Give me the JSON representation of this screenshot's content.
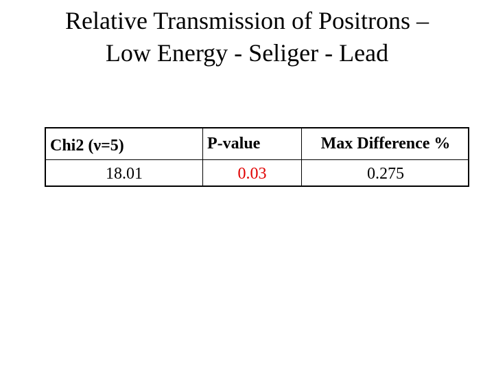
{
  "header": {
    "title_lines": [
      "Relative Transmission of Positrons –",
      "Low Energy - Seliger - Lead"
    ]
  },
  "table": {
    "headers": [
      "Chi2 (ν=5)",
      "P-value",
      "Max Difference %"
    ],
    "rows": [
      [
        "18.01",
        "0.03",
        "0.275"
      ]
    ]
  }
}
